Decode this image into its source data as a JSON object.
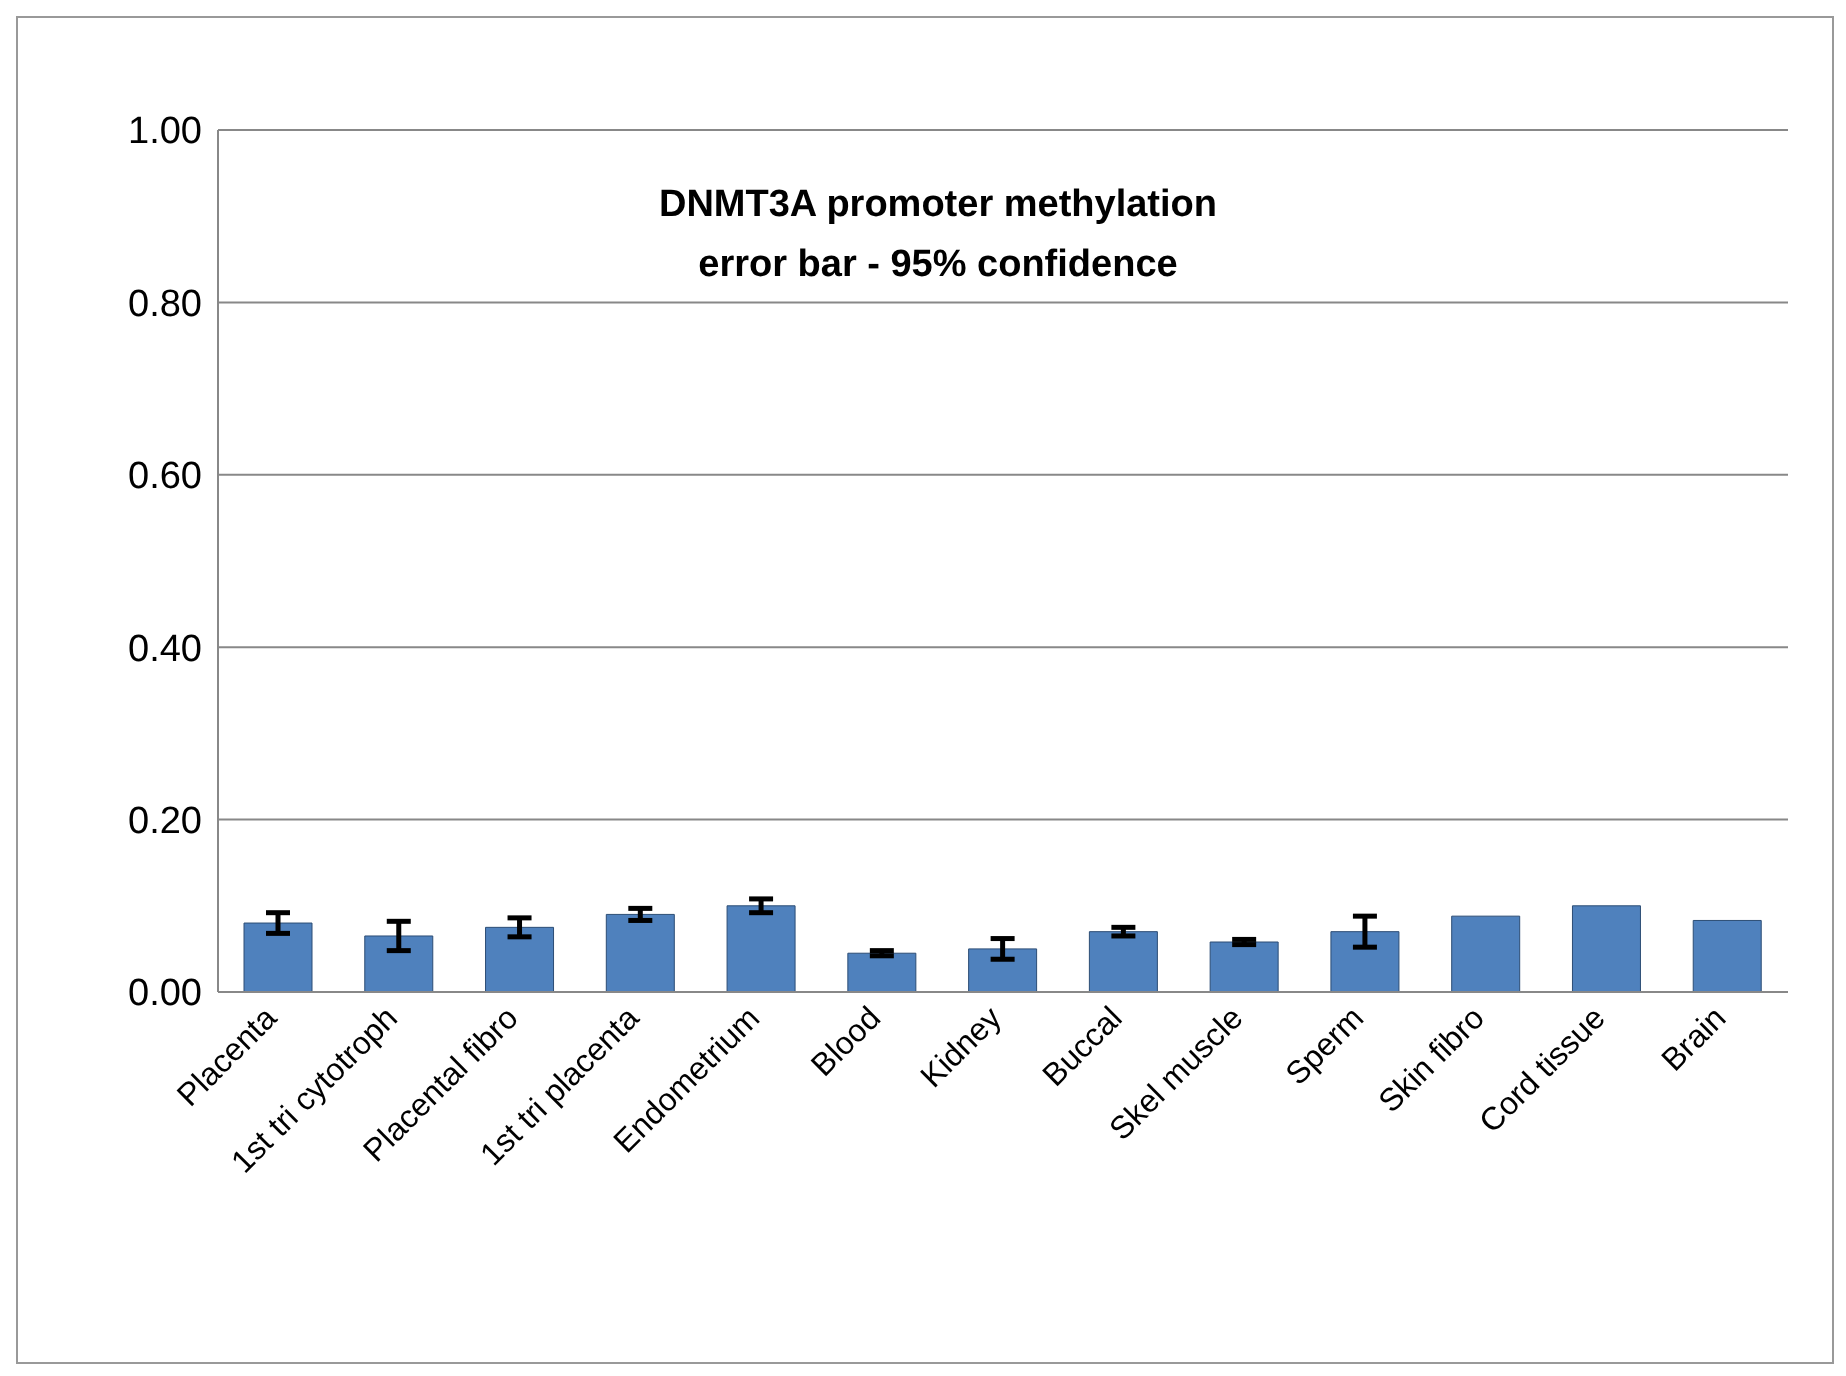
{
  "chart_data": {
    "type": "bar",
    "title": "DNMT3A promoter methylation\nerror bar - 95% confidence",
    "categories": [
      "Placenta",
      "1st tri cytotroph",
      "Placental fibro",
      "1st tri placenta",
      "Endometrium",
      "Blood",
      "Kidney",
      "Buccal",
      "Skel muscle",
      "Sperm",
      "Skin fibro",
      "Cord tissue",
      "Brain"
    ],
    "values": [
      0.08,
      0.065,
      0.075,
      0.09,
      0.1,
      0.045,
      0.05,
      0.07,
      0.058,
      0.07,
      0.088,
      0.1,
      0.083
    ],
    "errors": [
      0.012,
      0.017,
      0.011,
      0.007,
      0.008,
      0.003,
      0.012,
      0.005,
      0.003,
      0.018,
      null,
      null,
      null
    ],
    "color": "#4f81bd",
    "ylim": [
      0,
      1
    ],
    "yticks": [
      {
        "value": 0,
        "label": "0.00"
      },
      {
        "value": 0.2,
        "label": "0.20"
      },
      {
        "value": 0.4,
        "label": "0.40"
      },
      {
        "value": 0.6,
        "label": "0.60"
      },
      {
        "value": 0.8,
        "label": "0.80"
      },
      {
        "value": 1,
        "label": "1.00"
      }
    ],
    "grid": "y",
    "legend": false
  }
}
